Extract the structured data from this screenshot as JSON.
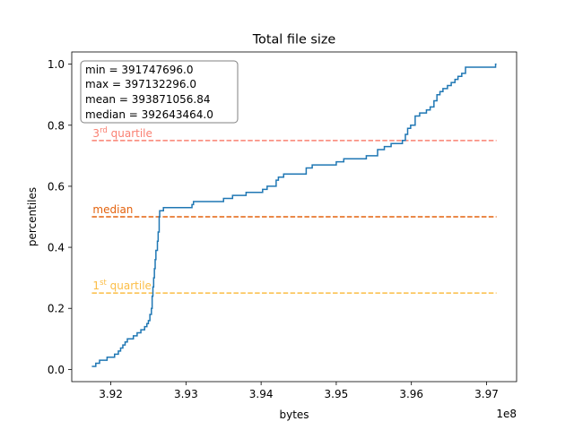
{
  "chart_data": {
    "type": "line",
    "title": "Total file size",
    "xlabel": "bytes",
    "ylabel": "percentiles",
    "x_offset_label": "1e8",
    "xlim": [
      391480000,
      397400000
    ],
    "ylim": [
      -0.04,
      1.04
    ],
    "xticks": [
      {
        "value": 392000000,
        "label": "3.92"
      },
      {
        "value": 393000000,
        "label": "3.93"
      },
      {
        "value": 394000000,
        "label": "3.94"
      },
      {
        "value": 395000000,
        "label": "3.95"
      },
      {
        "value": 396000000,
        "label": "3.96"
      },
      {
        "value": 397000000,
        "label": "3.97"
      }
    ],
    "yticks": [
      {
        "value": 0.0,
        "label": "0.0"
      },
      {
        "value": 0.2,
        "label": "0.2"
      },
      {
        "value": 0.4,
        "label": "0.4"
      },
      {
        "value": 0.6,
        "label": "0.6"
      },
      {
        "value": 0.8,
        "label": "0.8"
      },
      {
        "value": 1.0,
        "label": "1.0"
      }
    ],
    "stats": [
      "min = 391747696.0",
      "max = 397132296.0",
      "mean = 393871056.84",
      "median = 392643464.0"
    ],
    "reference_lines": [
      {
        "y": 0.75,
        "label_main": "3",
        "label_sup": "rd",
        "label_rest": " quartile",
        "color": "#fa8072"
      },
      {
        "y": 0.5,
        "label_main": "median",
        "label_sup": "",
        "label_rest": "",
        "color": "#e3620d"
      },
      {
        "y": 0.25,
        "label_main": "1",
        "label_sup": "st",
        "label_rest": " quartile",
        "color": "#fbbd45"
      }
    ],
    "series": [
      {
        "color": "#1f77b4",
        "points": [
          [
            391747696,
            0.01
          ],
          [
            391800000,
            0.01
          ],
          [
            391800000,
            0.02
          ],
          [
            391850000,
            0.02
          ],
          [
            391850000,
            0.03
          ],
          [
            391950000,
            0.03
          ],
          [
            391950000,
            0.04
          ],
          [
            392050000,
            0.04
          ],
          [
            392050000,
            0.05
          ],
          [
            392100000,
            0.05
          ],
          [
            392100000,
            0.06
          ],
          [
            392130000,
            0.06
          ],
          [
            392130000,
            0.07
          ],
          [
            392160000,
            0.07
          ],
          [
            392160000,
            0.08
          ],
          [
            392190000,
            0.08
          ],
          [
            392190000,
            0.09
          ],
          [
            392220000,
            0.09
          ],
          [
            392220000,
            0.1
          ],
          [
            392300000,
            0.1
          ],
          [
            392300000,
            0.11
          ],
          [
            392350000,
            0.11
          ],
          [
            392350000,
            0.12
          ],
          [
            392400000,
            0.12
          ],
          [
            392400000,
            0.13
          ],
          [
            392450000,
            0.13
          ],
          [
            392450000,
            0.14
          ],
          [
            392480000,
            0.14
          ],
          [
            392480000,
            0.15
          ],
          [
            392500000,
            0.15
          ],
          [
            392500000,
            0.16
          ],
          [
            392520000,
            0.16
          ],
          [
            392520000,
            0.18
          ],
          [
            392540000,
            0.18
          ],
          [
            392540000,
            0.2
          ],
          [
            392550000,
            0.2
          ],
          [
            392550000,
            0.24
          ],
          [
            392560000,
            0.24
          ],
          [
            392560000,
            0.27
          ],
          [
            392570000,
            0.27
          ],
          [
            392570000,
            0.3
          ],
          [
            392580000,
            0.3
          ],
          [
            392580000,
            0.33
          ],
          [
            392590000,
            0.33
          ],
          [
            392590000,
            0.36
          ],
          [
            392600000,
            0.36
          ],
          [
            392600000,
            0.39
          ],
          [
            392620000,
            0.39
          ],
          [
            392620000,
            0.42
          ],
          [
            392630000,
            0.42
          ],
          [
            392630000,
            0.45
          ],
          [
            392643464,
            0.45
          ],
          [
            392643464,
            0.5
          ],
          [
            392650000,
            0.5
          ],
          [
            392650000,
            0.52
          ],
          [
            392700000,
            0.52
          ],
          [
            392700000,
            0.53
          ],
          [
            393080000,
            0.53
          ],
          [
            393080000,
            0.54
          ],
          [
            393100000,
            0.54
          ],
          [
            393100000,
            0.55
          ],
          [
            393500000,
            0.55
          ],
          [
            393500000,
            0.56
          ],
          [
            393620000,
            0.56
          ],
          [
            393620000,
            0.57
          ],
          [
            393800000,
            0.57
          ],
          [
            393800000,
            0.58
          ],
          [
            394020000,
            0.58
          ],
          [
            394020000,
            0.59
          ],
          [
            394080000,
            0.59
          ],
          [
            394080000,
            0.6
          ],
          [
            394200000,
            0.6
          ],
          [
            394200000,
            0.62
          ],
          [
            394230000,
            0.62
          ],
          [
            394230000,
            0.63
          ],
          [
            394300000,
            0.63
          ],
          [
            394300000,
            0.64
          ],
          [
            394600000,
            0.64
          ],
          [
            394600000,
            0.66
          ],
          [
            394680000,
            0.66
          ],
          [
            394680000,
            0.67
          ],
          [
            395000000,
            0.67
          ],
          [
            395000000,
            0.68
          ],
          [
            395100000,
            0.68
          ],
          [
            395100000,
            0.69
          ],
          [
            395400000,
            0.69
          ],
          [
            395400000,
            0.7
          ],
          [
            395550000,
            0.7
          ],
          [
            395550000,
            0.72
          ],
          [
            395640000,
            0.72
          ],
          [
            395640000,
            0.73
          ],
          [
            395730000,
            0.73
          ],
          [
            395730000,
            0.74
          ],
          [
            395880000,
            0.74
          ],
          [
            395880000,
            0.75
          ],
          [
            395920000,
            0.75
          ],
          [
            395920000,
            0.77
          ],
          [
            395950000,
            0.77
          ],
          [
            395950000,
            0.79
          ],
          [
            395990000,
            0.79
          ],
          [
            395990000,
            0.8
          ],
          [
            396050000,
            0.8
          ],
          [
            396050000,
            0.83
          ],
          [
            396110000,
            0.83
          ],
          [
            396110000,
            0.84
          ],
          [
            396200000,
            0.84
          ],
          [
            396200000,
            0.85
          ],
          [
            396250000,
            0.85
          ],
          [
            396250000,
            0.86
          ],
          [
            396300000,
            0.86
          ],
          [
            396300000,
            0.88
          ],
          [
            396340000,
            0.88
          ],
          [
            396340000,
            0.9
          ],
          [
            396380000,
            0.9
          ],
          [
            396380000,
            0.91
          ],
          [
            396420000,
            0.91
          ],
          [
            396420000,
            0.92
          ],
          [
            396480000,
            0.92
          ],
          [
            396480000,
            0.93
          ],
          [
            396530000,
            0.93
          ],
          [
            396530000,
            0.94
          ],
          [
            396580000,
            0.94
          ],
          [
            396580000,
            0.95
          ],
          [
            396620000,
            0.95
          ],
          [
            396620000,
            0.96
          ],
          [
            396670000,
            0.96
          ],
          [
            396670000,
            0.97
          ],
          [
            396720000,
            0.97
          ],
          [
            396720000,
            0.99
          ],
          [
            397120000,
            0.99
          ],
          [
            397120000,
            1.0
          ],
          [
            397132296,
            1.0
          ]
        ]
      }
    ]
  }
}
